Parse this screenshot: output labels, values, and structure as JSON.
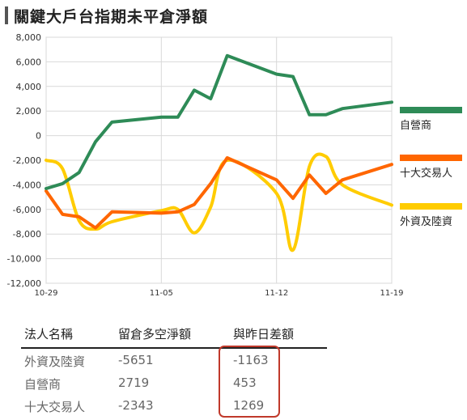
{
  "title": "關鍵大戶台指期未平倉淨額",
  "chart_data": {
    "type": "line",
    "title": "關鍵大戶台指期未平倉淨額",
    "x_ticks": [
      "10-29",
      "11-05",
      "11-12",
      "11-19"
    ],
    "y_ticks": [
      "8,000",
      "6,000",
      "4,000",
      "2,000",
      "0",
      "-2,000",
      "-4,000",
      "-6,000",
      "-8,000",
      "-10,000",
      "-12,000"
    ],
    "ylim": [
      -12000,
      8000
    ],
    "grid": true,
    "legend_position": "right",
    "series": [
      {
        "name": "自營商",
        "color": "#2e8b57",
        "points": [
          [
            0,
            -4300
          ],
          [
            1,
            -3900
          ],
          [
            2,
            -3000
          ],
          [
            3,
            -500
          ],
          [
            4,
            1100
          ],
          [
            7,
            1500
          ],
          [
            8,
            1500
          ],
          [
            9,
            3700
          ],
          [
            10,
            3000
          ],
          [
            11,
            6500
          ],
          [
            14,
            5000
          ],
          [
            15,
            4800
          ],
          [
            16,
            1700
          ],
          [
            17,
            1700
          ],
          [
            18,
            2200
          ],
          [
            21,
            2719
          ]
        ]
      },
      {
        "name": "十大交易人",
        "color": "#ff6600",
        "points": [
          [
            0,
            -4500
          ],
          [
            1,
            -6400
          ],
          [
            2,
            -6600
          ],
          [
            3,
            -7500
          ],
          [
            4,
            -6200
          ],
          [
            7,
            -6300
          ],
          [
            8,
            -6200
          ],
          [
            9,
            -5600
          ],
          [
            10,
            -3900
          ],
          [
            11,
            -1800
          ],
          [
            14,
            -3600
          ],
          [
            15,
            -5100
          ],
          [
            16,
            -3200
          ],
          [
            17,
            -4700
          ],
          [
            18,
            -3600
          ],
          [
            21,
            -2343
          ]
        ]
      },
      {
        "name": "外資及陸資",
        "color": "#ffcc00",
        "points": [
          [
            0,
            -2000
          ],
          [
            1,
            -2700
          ],
          [
            2,
            -6900
          ],
          [
            3,
            -7600
          ],
          [
            4,
            -7000
          ],
          [
            7,
            -6100
          ],
          [
            8,
            -6000
          ],
          [
            9,
            -7900
          ],
          [
            10,
            -5800
          ],
          [
            11,
            -2000
          ],
          [
            14,
            -4700
          ],
          [
            15,
            -9300
          ],
          [
            16,
            -2500
          ],
          [
            17,
            -1700
          ],
          [
            18,
            -4000
          ],
          [
            21,
            -5651
          ]
        ]
      }
    ]
  },
  "table": {
    "headers": [
      "法人名稱",
      "留倉多空淨額",
      "與昨日差額"
    ],
    "rows": [
      {
        "name": "外資及陸資",
        "net": "-5651",
        "diff": "-1163"
      },
      {
        "name": "自營商",
        "net": "2719",
        "diff": "453"
      },
      {
        "name": "十大交易人",
        "net": "-2343",
        "diff": "1269"
      }
    ]
  }
}
